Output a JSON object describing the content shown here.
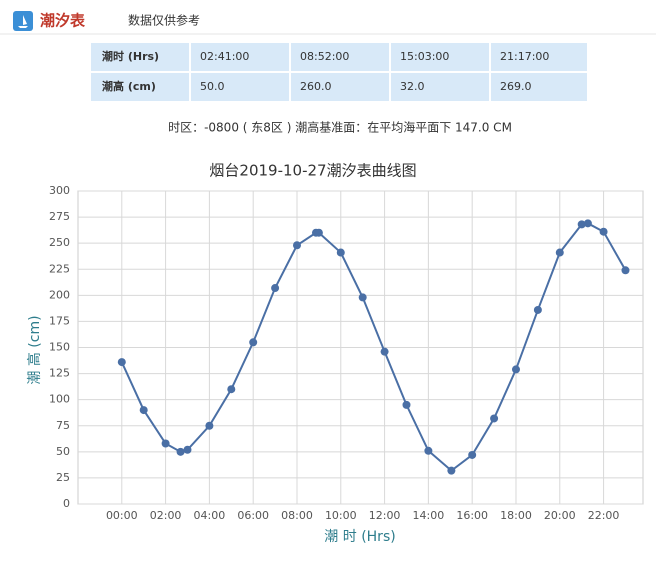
{
  "header": {
    "title": "潮汐表",
    "note": "数据仅供参考"
  },
  "table": {
    "rows": [
      [
        "潮时 (Hrs)",
        "02:41:00",
        "08:52:00",
        "15:03:00",
        "21:17:00"
      ],
      [
        "潮高 (cm)",
        "50.0",
        "260.0",
        "32.0",
        "269.0"
      ]
    ]
  },
  "info": "时区：-0800 ( 东8区 ) 潮高基准面：在平均海平面下 147.0 CM",
  "chart_data": {
    "type": "line",
    "title": "烟台2019-10-27潮汐表曲线图",
    "x_label": "潮 时 (Hrs)",
    "y_label": "潮 高 (cm)",
    "x": [
      0,
      60,
      120,
      161,
      180,
      240,
      300,
      360,
      420,
      480,
      532,
      540,
      600,
      660,
      720,
      780,
      840,
      903,
      960,
      1020,
      1080,
      1140,
      1200,
      1260,
      1277,
      1320,
      1380
    ],
    "values": [
      136,
      90,
      58,
      50,
      52,
      75,
      110,
      155,
      207,
      248,
      260,
      260,
      241,
      198,
      146,
      95,
      51,
      32,
      47,
      82,
      129,
      186,
      241,
      268,
      269,
      261,
      224
    ],
    "color": "#4a6fa5",
    "xlim": [
      -120,
      1428
    ],
    "xticks": [
      {
        "value": 0,
        "label": "00:00"
      },
      {
        "value": 120,
        "label": "02:00"
      },
      {
        "value": 240,
        "label": "04:00"
      },
      {
        "value": 360,
        "label": "06:00"
      },
      {
        "value": 480,
        "label": "08:00"
      },
      {
        "value": 600,
        "label": "10:00"
      },
      {
        "value": 720,
        "label": "12:00"
      },
      {
        "value": 840,
        "label": "14:00"
      },
      {
        "value": 960,
        "label": "16:00"
      },
      {
        "value": 1080,
        "label": "18:00"
      },
      {
        "value": 1200,
        "label": "20:00"
      },
      {
        "value": 1320,
        "label": "22:00"
      }
    ],
    "ylim": [
      0,
      300
    ],
    "yticks": [
      0,
      25,
      50,
      75,
      100,
      125,
      150,
      175,
      200,
      225,
      250,
      275,
      300
    ],
    "grid": true
  }
}
